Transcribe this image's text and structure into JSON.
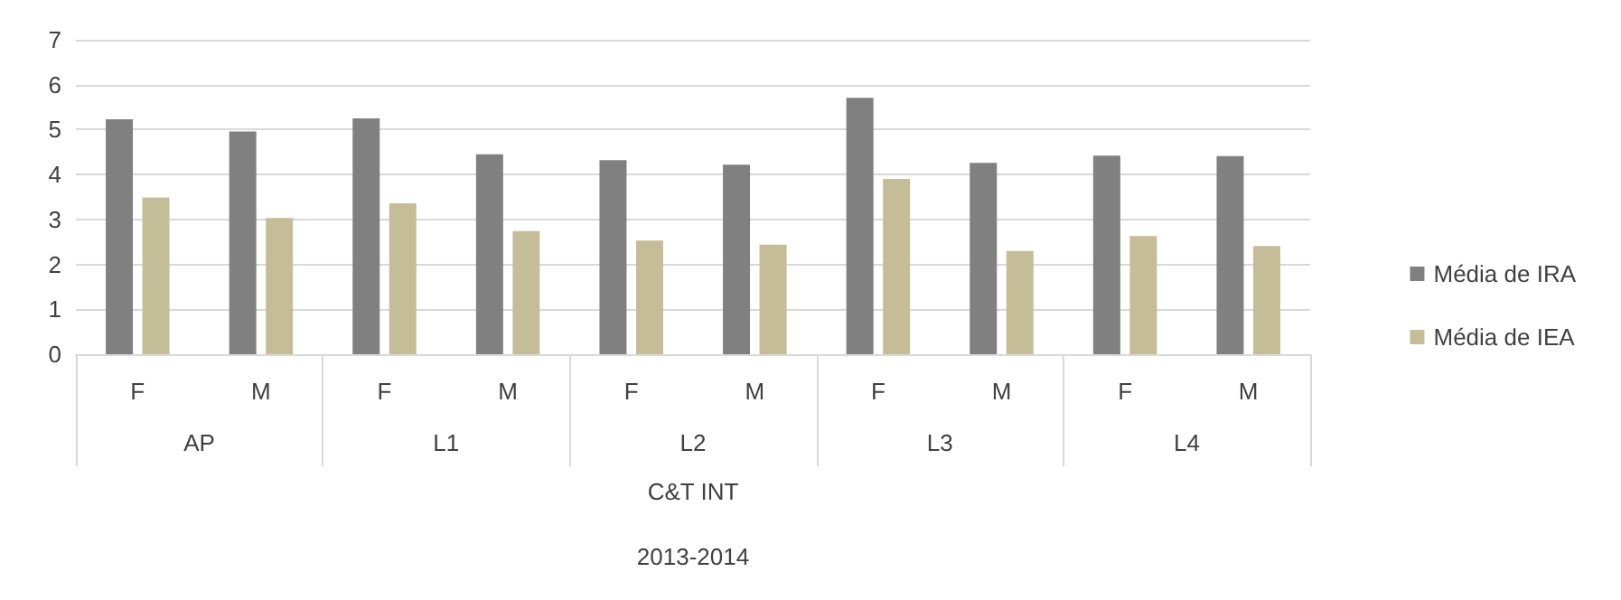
{
  "chart_data": {
    "type": "bar",
    "categories": [
      "F",
      "M",
      "F",
      "M",
      "F",
      "M",
      "F",
      "M",
      "F",
      "M"
    ],
    "series": [
      {
        "name": "Média de IRA",
        "color": "#808080",
        "values": [
          5.23,
          4.96,
          5.25,
          4.45,
          4.32,
          4.22,
          5.71,
          4.26,
          4.42,
          4.41
        ]
      },
      {
        "name": "Média de IEA",
        "color": "#c4bd97",
        "values": [
          3.49,
          3.03,
          3.36,
          2.74,
          2.53,
          2.44,
          3.9,
          2.3,
          2.63,
          2.41
        ]
      }
    ],
    "ylim": [
      0,
      7
    ],
    "yticks": [
      0,
      1,
      2,
      3,
      4,
      5,
      6,
      7
    ],
    "grid": "y",
    "legend": "right",
    "annotations": [
      "AP",
      "L1",
      "L2",
      "L3",
      "L4",
      "C&T INT",
      "2013-2014"
    ]
  }
}
